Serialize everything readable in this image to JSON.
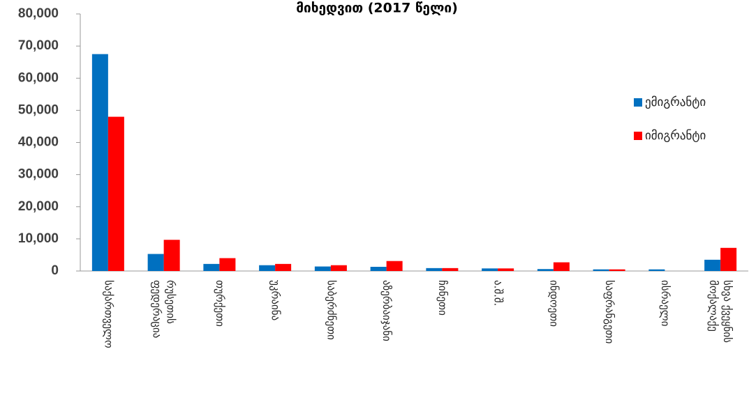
{
  "chart_data": {
    "type": "bar",
    "title": "მიხედვით (2017 წელი)",
    "categories": [
      "საქართველო",
      "რუსეთის\nფედერაცია",
      "თურქეთი",
      "უკრაინა",
      "საბერძნეთი",
      "აზერბაიჯანი",
      "ჩინეთი",
      "ა.შ.შ.",
      "ინდოეთი",
      "საფრანგეთი",
      "ისრაელი",
      "სხვა ქვეყნის\nმოქალაქე"
    ],
    "series": [
      {
        "name": "ემიგრანტი",
        "color": "#0070c0",
        "values": [
          67500,
          5300,
          2200,
          1800,
          1400,
          1300,
          900,
          800,
          600,
          500,
          500,
          3500
        ]
      },
      {
        "name": "იმიგრანტი",
        "color": "#ff0000",
        "values": [
          48000,
          9700,
          4000,
          2200,
          1800,
          3100,
          900,
          800,
          2700,
          500,
          0,
          7200
        ]
      }
    ],
    "ylim": [
      0,
      80000
    ],
    "yticks": [
      0,
      {
        "value": 10000,
        "label": "10,000"
      },
      {
        "value": 20000,
        "label": "20,000"
      },
      {
        "value": 30000,
        "label": "30,000"
      },
      {
        "value": 40000,
        "label": "40,000"
      },
      {
        "value": 50000,
        "label": "50,000"
      },
      {
        "value": 60000,
        "label": "60,000"
      },
      {
        "value": 70000,
        "label": "70,000"
      },
      {
        "value": 80000,
        "label": "80,000"
      }
    ],
    "legend": "right"
  }
}
